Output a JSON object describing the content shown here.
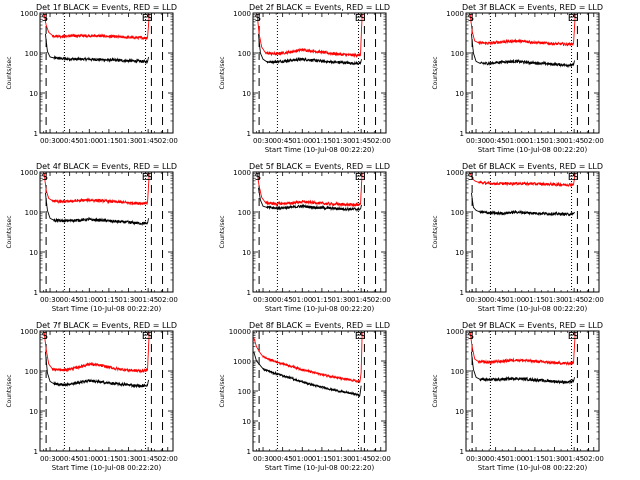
{
  "figure": {
    "background": "#ffffff",
    "axis_color": "#000000",
    "events_color": "#000000",
    "lld_color": "#ff0000"
  },
  "chart_data": [
    {
      "type": "line",
      "title": "Det 1f BLACK = Events, RED = LLD",
      "ylabel": "Counts/sec",
      "xlabel": "",
      "yscale": "log",
      "ylim": [
        1,
        1000
      ],
      "y_ticks": [
        "1",
        "10",
        "100",
        "1000"
      ],
      "x_ticks": [
        "00:30",
        "00:45",
        "01:00",
        "01:15",
        "01:30",
        "01:45",
        "02:00"
      ],
      "x_tick_minutes": [
        30,
        45,
        60,
        75,
        90,
        105,
        120
      ],
      "xlim_minutes": [
        22.33,
        124
      ],
      "dashed_lines_minutes": [
        27,
        107.5,
        116
      ],
      "dotted_lines_minutes": [
        41,
        103
      ],
      "markers": [
        {
          "label": "S",
          "minute": 26
        },
        {
          "label": "E",
          "minute": 102.5
        },
        {
          "label": "S",
          "minute": 106
        }
      ],
      "series": [
        {
          "role": "events",
          "x": [
            26.5,
            28,
            30,
            33,
            40,
            50,
            60,
            70,
            80,
            90,
            100,
            104.5,
            105.3
          ],
          "values": [
            300,
            110,
            80,
            75,
            72,
            70,
            70,
            68,
            66,
            64,
            62,
            60,
            80
          ]
        },
        {
          "role": "lld",
          "x": [
            25.5,
            27,
            29,
            32,
            40,
            50,
            60,
            70,
            80,
            90,
            100,
            104.5,
            105.3,
            105.8
          ],
          "values": [
            950,
            500,
            330,
            270,
            260,
            270,
            270,
            265,
            255,
            245,
            240,
            240,
            500,
            950
          ]
        }
      ]
    },
    {
      "type": "line",
      "title": "Det 2f BLACK = Events, RED = LLD",
      "ylabel": "Counts/sec",
      "xlabel": "Start Time (10-Jul-08 00:22:20)",
      "yscale": "log",
      "ylim": [
        1,
        1000
      ],
      "y_ticks": [
        "1",
        "10",
        "100",
        "1000"
      ],
      "x_ticks": [
        "00:30",
        "00:45",
        "01:00",
        "01:15",
        "01:30",
        "01:45",
        "02:00"
      ],
      "x_tick_minutes": [
        30,
        45,
        60,
        75,
        90,
        105,
        120
      ],
      "xlim_minutes": [
        22.33,
        124
      ],
      "dashed_lines_minutes": [
        27,
        107.5,
        116
      ],
      "dotted_lines_minutes": [
        41,
        103
      ],
      "markers": [
        {
          "label": "S",
          "minute": 26
        },
        {
          "label": "E",
          "minute": 102.5
        },
        {
          "label": "S",
          "minute": 106
        }
      ],
      "series": [
        {
          "role": "events",
          "x": [
            26.5,
            28,
            30,
            33,
            40,
            50,
            60,
            70,
            80,
            90,
            100,
            104.5,
            105.3
          ],
          "values": [
            300,
            100,
            70,
            60,
            60,
            65,
            70,
            65,
            60,
            58,
            55,
            55,
            70
          ]
        },
        {
          "role": "lld",
          "x": [
            25.5,
            27,
            29,
            32,
            40,
            50,
            60,
            70,
            80,
            90,
            100,
            104.5,
            105.3,
            105.8
          ],
          "values": [
            950,
            300,
            140,
            100,
            95,
            105,
            120,
            110,
            100,
            92,
            88,
            90,
            400,
            950
          ]
        }
      ]
    },
    {
      "type": "line",
      "title": "Det 3f BLACK = Events, RED = LLD",
      "ylabel": "Counts/sec",
      "xlabel": "Start Time (10-Jul-08 00:22:20)",
      "yscale": "log",
      "ylim": [
        1,
        1000
      ],
      "y_ticks": [
        "1",
        "10",
        "100",
        "1000"
      ],
      "x_ticks": [
        "00:30",
        "00:45",
        "01:00",
        "01:15",
        "01:30",
        "01:45",
        "02:00"
      ],
      "x_tick_minutes": [
        30,
        45,
        60,
        75,
        90,
        105,
        120
      ],
      "xlim_minutes": [
        22.33,
        124
      ],
      "dashed_lines_minutes": [
        27,
        107.5,
        116
      ],
      "dotted_lines_minutes": [
        41,
        103
      ],
      "markers": [
        {
          "label": "S",
          "minute": 26
        },
        {
          "label": "E",
          "minute": 102.5
        },
        {
          "label": "S",
          "minute": 106
        }
      ],
      "series": [
        {
          "role": "events",
          "x": [
            26.5,
            28,
            30,
            33,
            40,
            50,
            60,
            70,
            80,
            90,
            100,
            104.5,
            105.3
          ],
          "values": [
            300,
            100,
            62,
            55,
            55,
            60,
            62,
            58,
            55,
            52,
            50,
            50,
            65
          ]
        },
        {
          "role": "lld",
          "x": [
            25.5,
            27,
            29,
            32,
            40,
            50,
            60,
            70,
            80,
            90,
            100,
            104.5,
            105.3,
            105.8
          ],
          "values": [
            950,
            350,
            200,
            180,
            175,
            190,
            200,
            190,
            180,
            170,
            165,
            170,
            450,
            950
          ]
        }
      ]
    },
    {
      "type": "line",
      "title": "Det 4f BLACK = Events, RED = LLD",
      "ylabel": "Counts/sec",
      "xlabel": "Start Time (10-Jul-08 00:22:20)",
      "yscale": "log",
      "ylim": [
        1,
        1000
      ],
      "y_ticks": [
        "1",
        "10",
        "100",
        "1000"
      ],
      "x_ticks": [
        "00:30",
        "00:45",
        "01:00",
        "01:15",
        "01:30",
        "01:45",
        "02:00"
      ],
      "x_tick_minutes": [
        30,
        45,
        60,
        75,
        90,
        105,
        120
      ],
      "xlim_minutes": [
        22.33,
        124
      ],
      "dashed_lines_minutes": [
        27,
        107.5,
        116
      ],
      "dotted_lines_minutes": [
        41,
        103
      ],
      "markers": [
        {
          "label": "S",
          "minute": 26
        },
        {
          "label": "E",
          "minute": 102.5
        },
        {
          "label": "S",
          "minute": 106
        }
      ],
      "series": [
        {
          "role": "events",
          "x": [
            26.5,
            28,
            30,
            33,
            40,
            50,
            60,
            70,
            80,
            90,
            100,
            104.5,
            105.3
          ],
          "values": [
            300,
            110,
            70,
            62,
            60,
            62,
            65,
            62,
            58,
            55,
            52,
            52,
            70
          ]
        },
        {
          "role": "lld",
          "x": [
            25.5,
            27,
            29,
            32,
            40,
            50,
            60,
            70,
            80,
            90,
            100,
            104.5,
            105.3,
            105.8
          ],
          "values": [
            950,
            350,
            220,
            190,
            180,
            190,
            200,
            190,
            180,
            170,
            165,
            170,
            450,
            950
          ]
        }
      ]
    },
    {
      "type": "line",
      "title": "Det 5f BLACK = Events, RED = LLD",
      "ylabel": "Counts/sec",
      "xlabel": "Start Time (10-Jul-08 00:22:20)",
      "yscale": "log",
      "ylim": [
        1,
        1000
      ],
      "y_ticks": [
        "1",
        "10",
        "100",
        "1000"
      ],
      "x_ticks": [
        "00:30",
        "00:45",
        "01:00",
        "01:15",
        "01:30",
        "01:45",
        "02:00"
      ],
      "x_tick_minutes": [
        30,
        45,
        60,
        75,
        90,
        105,
        120
      ],
      "xlim_minutes": [
        22.33,
        124
      ],
      "dashed_lines_minutes": [
        27,
        107.5,
        116
      ],
      "dotted_lines_minutes": [
        41,
        103
      ],
      "markers": [
        {
          "label": "S",
          "minute": 26
        },
        {
          "label": "E",
          "minute": 102.5
        },
        {
          "label": "S",
          "minute": 106
        }
      ],
      "series": [
        {
          "role": "events",
          "x": [
            26.5,
            28,
            30,
            33,
            40,
            50,
            60,
            70,
            80,
            90,
            100,
            104.5,
            105.3
          ],
          "values": [
            400,
            200,
            140,
            130,
            125,
            130,
            140,
            130,
            125,
            120,
            118,
            118,
            150
          ]
        },
        {
          "role": "lld",
          "x": [
            25.5,
            27,
            29,
            32,
            40,
            50,
            60,
            70,
            80,
            90,
            100,
            104.5,
            105.3,
            105.8
          ],
          "values": [
            950,
            450,
            230,
            170,
            160,
            165,
            180,
            170,
            160,
            155,
            150,
            155,
            500,
            950
          ]
        }
      ]
    },
    {
      "type": "line",
      "title": "Det 6f BLACK = Events, RED = LLD",
      "ylabel": "Counts/sec",
      "xlabel": "Start Time (10-Jul-08 00:22:20)",
      "yscale": "log",
      "ylim": [
        1,
        1000
      ],
      "y_ticks": [
        "1",
        "10",
        "100",
        "1000"
      ],
      "x_ticks": [
        "00:30",
        "00:45",
        "01:00",
        "01:15",
        "01:30",
        "01:45",
        "02:00"
      ],
      "x_tick_minutes": [
        30,
        45,
        60,
        75,
        90,
        105,
        120
      ],
      "xlim_minutes": [
        22.33,
        124
      ],
      "dashed_lines_minutes": [
        27,
        107.5,
        116
      ],
      "dotted_lines_minutes": [
        41,
        103
      ],
      "markers": [
        {
          "label": "S",
          "minute": 26
        },
        {
          "label": "E",
          "minute": 102.5
        },
        {
          "label": "S",
          "minute": 106
        }
      ],
      "series": [
        {
          "role": "events",
          "x": [
            26.5,
            28,
            30,
            33,
            40,
            50,
            60,
            70,
            80,
            90,
            100,
            104.5,
            105.3
          ],
          "values": [
            300,
            130,
            110,
            100,
            95,
            92,
            100,
            95,
            92,
            90,
            88,
            90,
            100
          ]
        },
        {
          "role": "lld",
          "x": [
            25.5,
            27,
            29,
            32,
            40,
            50,
            60,
            70,
            80,
            90,
            100,
            104.5,
            105.3,
            105.8
          ],
          "values": [
            950,
            700,
            600,
            550,
            520,
            510,
            520,
            510,
            500,
            490,
            480,
            490,
            700,
            950
          ]
        }
      ]
    },
    {
      "type": "line",
      "title": "Det 7f BLACK = Events, RED = LLD",
      "ylabel": "Counts/sec",
      "xlabel": "Start Time (10-Jul-08 00:22:20)",
      "yscale": "log",
      "ylim": [
        1,
        1000
      ],
      "y_ticks": [
        "1",
        "10",
        "100",
        "1000"
      ],
      "x_ticks": [
        "00:30",
        "00:45",
        "01:00",
        "01:15",
        "01:30",
        "01:45",
        "02:00"
      ],
      "x_tick_minutes": [
        30,
        45,
        60,
        75,
        90,
        105,
        120
      ],
      "xlim_minutes": [
        22.33,
        124
      ],
      "dashed_lines_minutes": [
        27,
        107.5,
        116
      ],
      "dotted_lines_minutes": [
        41,
        103
      ],
      "markers": [
        {
          "label": "S",
          "minute": 26
        },
        {
          "label": "E",
          "minute": 102.5
        },
        {
          "label": "S",
          "minute": 106
        }
      ],
      "series": [
        {
          "role": "events",
          "x": [
            26.5,
            28,
            30,
            33,
            40,
            50,
            60,
            70,
            80,
            90,
            100,
            104.5,
            105.3
          ],
          "values": [
            300,
            90,
            55,
            48,
            45,
            50,
            58,
            52,
            48,
            45,
            42,
            45,
            60
          ]
        },
        {
          "role": "lld",
          "x": [
            25.5,
            27,
            29,
            32,
            40,
            50,
            60,
            70,
            80,
            90,
            100,
            104.5,
            105.3,
            105.8
          ],
          "values": [
            950,
            350,
            150,
            110,
            105,
            120,
            150,
            135,
            115,
            105,
            100,
            105,
            400,
            950
          ]
        }
      ]
    },
    {
      "type": "line",
      "title": "Det 8f BLACK = Events, RED = LLD",
      "ylabel": "Counts/sec",
      "xlabel": "Start Time (10-Jul-08 00:22:20)",
      "yscale": "log",
      "ylim": [
        1,
        10000
      ],
      "y_ticks": [
        "1",
        "10",
        "100",
        "1000",
        "10000"
      ],
      "x_ticks": [
        "00:30",
        "00:45",
        "01:00",
        "01:15",
        "01:30",
        "01:45",
        "02:00"
      ],
      "x_tick_minutes": [
        30,
        45,
        60,
        75,
        90,
        105,
        120
      ],
      "xlim_minutes": [
        22.33,
        124
      ],
      "dashed_lines_minutes": [
        27,
        107.5,
        116
      ],
      "dotted_lines_minutes": [
        41,
        103
      ],
      "markers": [
        {
          "label": "E",
          "minute": 102.5
        },
        {
          "label": "S",
          "minute": 106
        }
      ],
      "series": [
        {
          "role": "events",
          "x": [
            23,
            25,
            28,
            30,
            35,
            40,
            50,
            60,
            70,
            80,
            90,
            100,
            104,
            105
          ],
          "values": [
            2000,
            1000,
            700,
            550,
            450,
            380,
            280,
            200,
            150,
            120,
            95,
            80,
            70,
            150
          ]
        },
        {
          "role": "lld",
          "x": [
            23,
            25,
            28,
            30,
            35,
            40,
            50,
            60,
            70,
            80,
            90,
            100,
            104,
            105,
            105.8
          ],
          "values": [
            6000,
            3000,
            1800,
            1400,
            1100,
            950,
            700,
            520,
            400,
            320,
            260,
            220,
            200,
            400,
            9000
          ]
        }
      ]
    },
    {
      "type": "line",
      "title": "Det 9f BLACK = Events, RED = LLD",
      "ylabel": "Counts/sec",
      "xlabel": "Start Time (10-Jul-08 00:22:20)",
      "yscale": "log",
      "ylim": [
        1,
        1000
      ],
      "y_ticks": [
        "1",
        "10",
        "100",
        "1000"
      ],
      "x_ticks": [
        "00:30",
        "00:45",
        "01:00",
        "01:15",
        "01:30",
        "01:45",
        "02:00"
      ],
      "x_tick_minutes": [
        30,
        45,
        60,
        75,
        90,
        105,
        120
      ],
      "xlim_minutes": [
        22.33,
        124
      ],
      "dashed_lines_minutes": [
        27,
        107.5,
        116
      ],
      "dotted_lines_minutes": [
        41,
        103
      ],
      "markers": [
        {
          "label": "S",
          "minute": 26
        },
        {
          "label": "E",
          "minute": 102.5
        },
        {
          "label": "S",
          "minute": 106
        }
      ],
      "series": [
        {
          "role": "events",
          "x": [
            26.5,
            28,
            30,
            33,
            40,
            50,
            60,
            70,
            80,
            90,
            100,
            104.5,
            105.3
          ],
          "values": [
            300,
            110,
            70,
            62,
            60,
            62,
            65,
            62,
            58,
            55,
            52,
            55,
            70
          ]
        },
        {
          "role": "lld",
          "x": [
            25.5,
            27,
            29,
            32,
            40,
            50,
            60,
            70,
            80,
            90,
            100,
            104.5,
            105.3,
            105.8
          ],
          "values": [
            950,
            400,
            200,
            170,
            165,
            175,
            190,
            180,
            170,
            160,
            155,
            160,
            450,
            950
          ]
        }
      ]
    }
  ]
}
